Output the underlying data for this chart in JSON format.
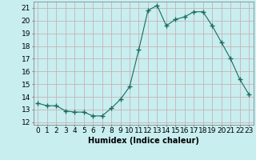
{
  "x": [
    0,
    1,
    2,
    3,
    4,
    5,
    6,
    7,
    8,
    9,
    10,
    11,
    12,
    13,
    14,
    15,
    16,
    17,
    18,
    19,
    20,
    21,
    22,
    23
  ],
  "y": [
    13.5,
    13.3,
    13.3,
    12.9,
    12.8,
    12.8,
    12.5,
    12.5,
    13.1,
    13.8,
    14.8,
    17.7,
    20.8,
    21.2,
    19.6,
    20.1,
    20.3,
    20.7,
    20.7,
    19.6,
    18.3,
    17.0,
    15.4,
    14.2
  ],
  "line_color": "#1a6b5e",
  "marker": "+",
  "marker_size": 4,
  "bg_color": "#c8eef0",
  "grid_color_major": "#c8a8a8",
  "grid_color_minor": "#c8a8a8",
  "xlabel": "Humidex (Indice chaleur)",
  "xlabel_fontsize": 7,
  "ylabel_ticks": [
    12,
    13,
    14,
    15,
    16,
    17,
    18,
    19,
    20,
    21
  ],
  "xlim": [
    -0.5,
    23.5
  ],
  "ylim": [
    11.8,
    21.5
  ],
  "tick_fontsize": 6.5
}
